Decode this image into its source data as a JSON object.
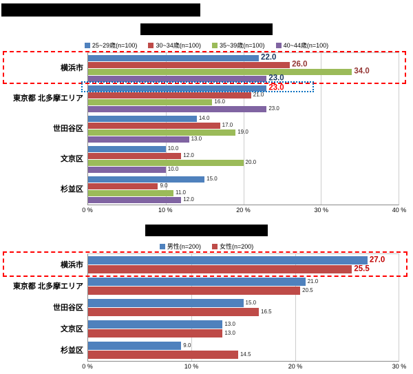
{
  "titles": {
    "main": "",
    "chart1": "",
    "chart2": ""
  },
  "colors": {
    "series_blue": "#4f81bd",
    "series_red": "#be4b48",
    "series_green": "#9bbb59",
    "series_purple": "#8064a2",
    "highlight_red": "#ff0000",
    "highlight_blue": "#0070c0"
  },
  "chart_data": [
    {
      "type": "bar",
      "orientation": "horizontal",
      "title": "",
      "categories": [
        "横浜市",
        "東京都 北多摩エリア",
        "世田谷区",
        "文京区",
        "杉並区"
      ],
      "series": [
        {
          "name": "25~29歳(n=100)",
          "color": "#4f81bd",
          "values": [
            22.0,
            23.0,
            14.0,
            10.0,
            15.0
          ]
        },
        {
          "name": "30~34歳(n=100)",
          "color": "#be4b48",
          "values": [
            26.0,
            21.0,
            17.0,
            12.0,
            9.0
          ]
        },
        {
          "name": "35~39歳(n=100)",
          "color": "#9bbb59",
          "values": [
            34.0,
            16.0,
            19.0,
            20.0,
            11.0
          ]
        },
        {
          "name": "40~44歳(n=100)",
          "color": "#8064a2",
          "values": [
            23.0,
            23.0,
            13.0,
            10.0,
            12.0
          ]
        }
      ],
      "xlim": [
        0,
        40
      ],
      "tick_labels": [
        "0 %",
        "10 %",
        "20 %",
        "30 %",
        "40 %"
      ],
      "grid": true,
      "legend_position": "top",
      "emphasized": [
        {
          "series": 0,
          "category": 0,
          "color": "#17375e"
        },
        {
          "series": 1,
          "category": 0,
          "color": "#943634"
        },
        {
          "series": 2,
          "category": 0,
          "color": "#943634"
        },
        {
          "series": 3,
          "category": 0,
          "color": "#17375e"
        },
        {
          "series": 0,
          "category": 1,
          "color": "#ff0000"
        }
      ],
      "annotations": [
        {
          "type": "dashed-box",
          "color": "#ff0000",
          "target": "横浜市 row (all age bars)"
        },
        {
          "type": "dotted-box",
          "color": "#0070c0",
          "target": "東京都 北多摩エリア 25~29歳 bar (23.0)"
        }
      ]
    },
    {
      "type": "bar",
      "orientation": "horizontal",
      "title": "",
      "categories": [
        "横浜市",
        "東京都 北多摩エリア",
        "世田谷区",
        "文京区",
        "杉並区"
      ],
      "series": [
        {
          "name": "男性(n=200)",
          "color": "#4f81bd",
          "values": [
            27.0,
            21.0,
            15.0,
            13.0,
            9.0
          ]
        },
        {
          "name": "女性(n=200)",
          "color": "#be4b48",
          "values": [
            25.5,
            20.5,
            16.5,
            13.0,
            14.5
          ]
        }
      ],
      "xlim": [
        0,
        30
      ],
      "tick_labels": [
        "0 %",
        "10 %",
        "20 %",
        "30 %"
      ],
      "grid": true,
      "legend_position": "top",
      "emphasized": [
        {
          "series": 0,
          "category": 0,
          "color": "#c00000"
        },
        {
          "series": 1,
          "category": 0,
          "color": "#c00000"
        }
      ],
      "annotations": [
        {
          "type": "dashed-box",
          "color": "#ff0000",
          "target": "横浜市 row (male/female bars)"
        }
      ]
    }
  ]
}
